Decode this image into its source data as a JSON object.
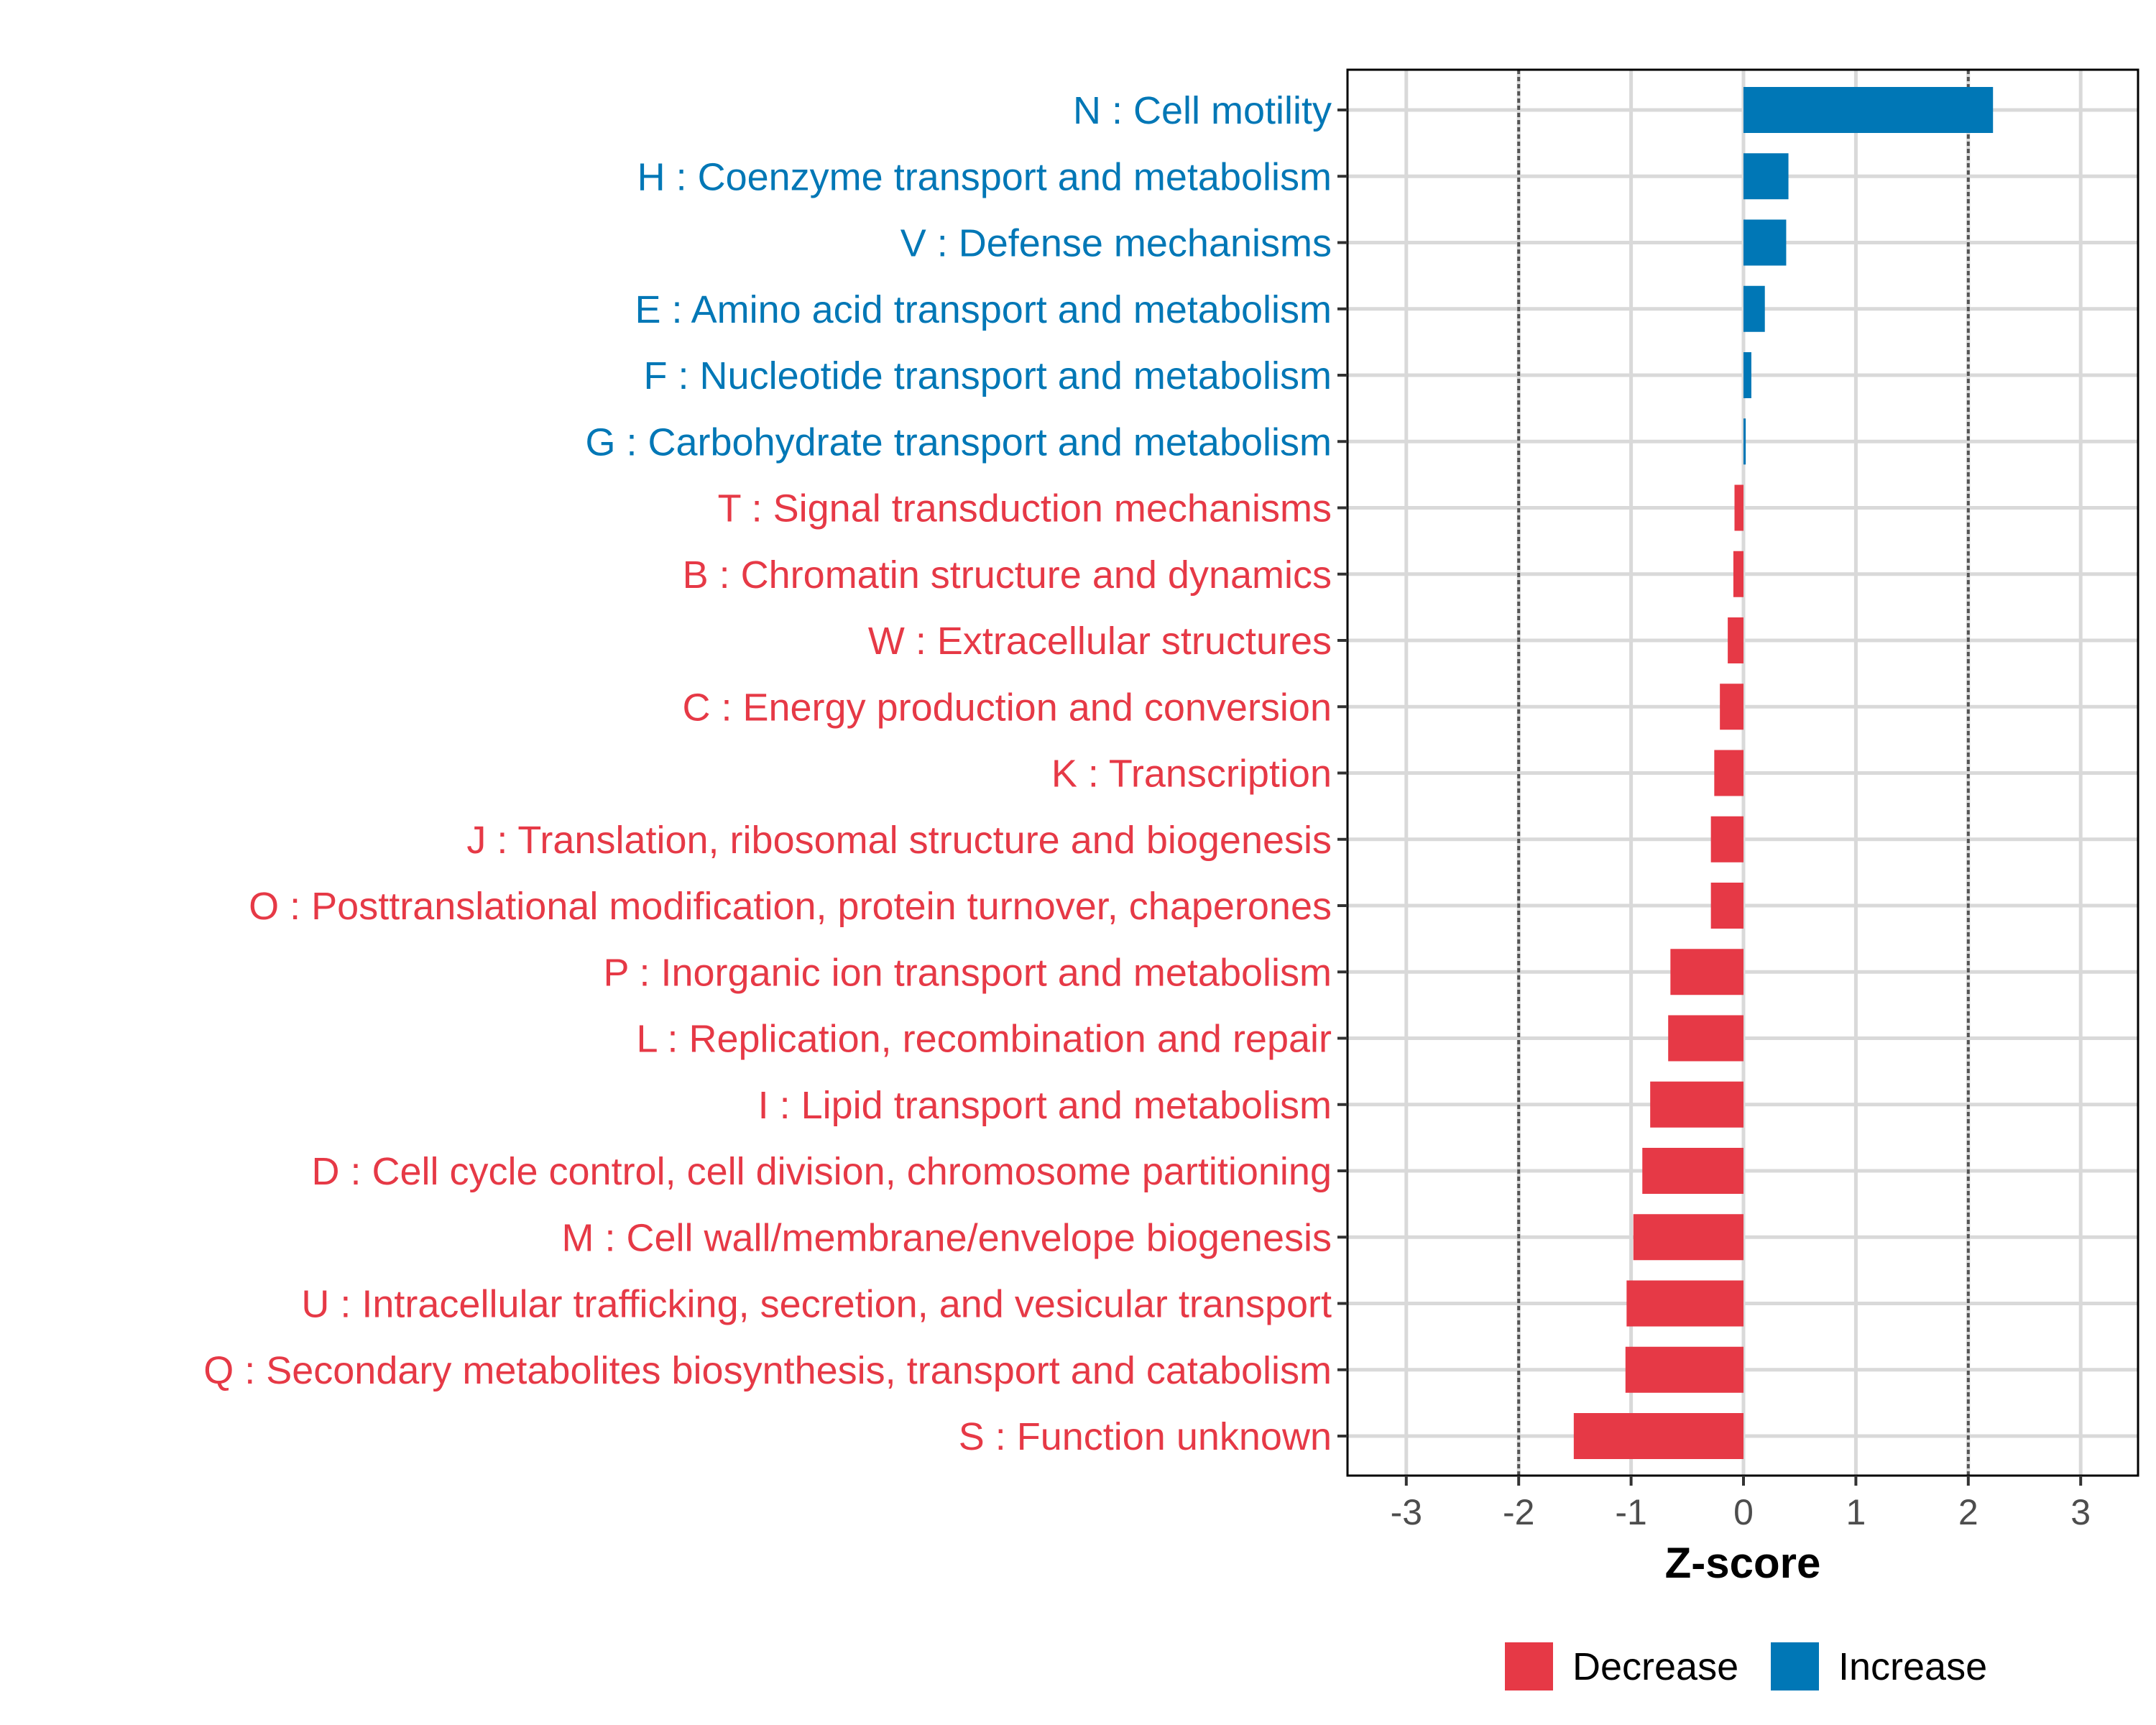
{
  "chart_data": {
    "type": "bar",
    "orientation": "horizontal",
    "title": "",
    "xlabel": "Z-score",
    "ylabel": "",
    "xlim": [
      -3.5,
      3.5
    ],
    "xticks": [
      -3,
      -2,
      -1,
      0,
      1,
      2,
      3
    ],
    "xtick_labels": [
      "-3",
      "-2",
      "-1",
      "0",
      "1",
      "2",
      "3"
    ],
    "reference_lines": [
      -2,
      2
    ],
    "grid": true,
    "legend": {
      "position": "bottom",
      "entries": [
        {
          "label": "Decrease",
          "color": "#E63946"
        },
        {
          "label": "Increase",
          "color": "#0077B6"
        }
      ]
    },
    "colors": {
      "Decrease": "#E63946",
      "Increase": "#0077B6"
    },
    "categories": [
      "N : Cell motility",
      "H : Coenzyme transport and metabolism",
      "V : Defense mechanisms",
      "E : Amino acid transport and metabolism",
      "F : Nucleotide transport and metabolism",
      "G : Carbohydrate transport and metabolism",
      "T : Signal transduction mechanisms",
      "B : Chromatin structure and dynamics",
      "W : Extracellular structures",
      "C : Energy production and conversion",
      "K : Transcription",
      "J : Translation, ribosomal structure and biogenesis",
      "O : Posttranslational modification, protein turnover, chaperones",
      "P : Inorganic ion transport and metabolism",
      "L : Replication, recombination and repair",
      "I : Lipid transport and metabolism",
      "D : Cell cycle control, cell division, chromosome partitioning",
      "M : Cell wall/membrane/envelope biogenesis",
      "U : Intracellular trafficking, secretion, and vesicular transport",
      "Q : Secondary metabolites biosynthesis, transport and catabolism",
      "S : Function unknown"
    ],
    "values": [
      2.22,
      0.4,
      0.38,
      0.19,
      0.07,
      0.02,
      -0.08,
      -0.09,
      -0.14,
      -0.21,
      -0.26,
      -0.29,
      -0.29,
      -0.65,
      -0.67,
      -0.83,
      -0.9,
      -0.98,
      -1.04,
      -1.05,
      -1.51
    ],
    "groups": [
      "Increase",
      "Increase",
      "Increase",
      "Increase",
      "Increase",
      "Increase",
      "Decrease",
      "Decrease",
      "Decrease",
      "Decrease",
      "Decrease",
      "Decrease",
      "Decrease",
      "Decrease",
      "Decrease",
      "Decrease",
      "Decrease",
      "Decrease",
      "Decrease",
      "Decrease",
      "Decrease"
    ]
  }
}
